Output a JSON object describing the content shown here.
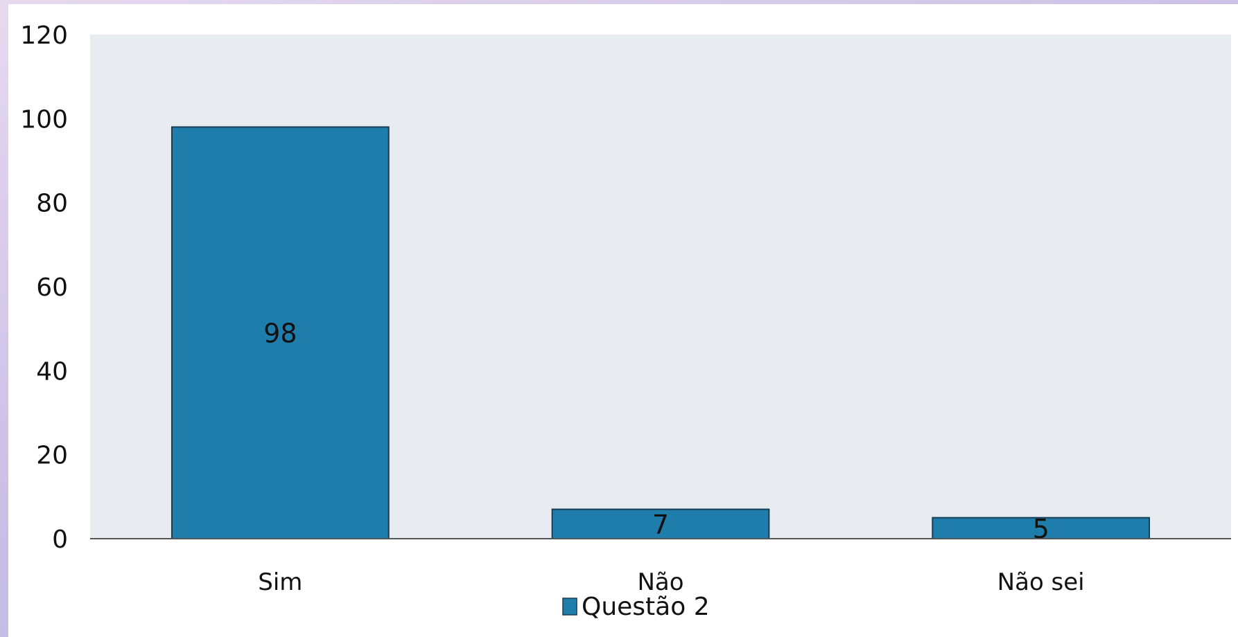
{
  "chart_data": {
    "type": "bar",
    "title": "",
    "xlabel": "",
    "ylabel": "",
    "categories": [
      "Sim",
      "Não",
      "Não sei"
    ],
    "series": [
      {
        "name": "Questão 2",
        "values": [
          98,
          7,
          5
        ],
        "color": "#1f7dab"
      }
    ],
    "ylim": [
      0,
      120
    ],
    "yticks": [
      0,
      20,
      40,
      60,
      80,
      100,
      120
    ],
    "yticks_labels": [
      "0",
      "20",
      "40",
      "60",
      "80",
      "100",
      "120"
    ],
    "data_labels": [
      "98",
      "7",
      "5"
    ],
    "grid": false,
    "plot_background": "#e8ecf0",
    "legend": {
      "position": "bottom",
      "label": "Questão 2"
    }
  }
}
